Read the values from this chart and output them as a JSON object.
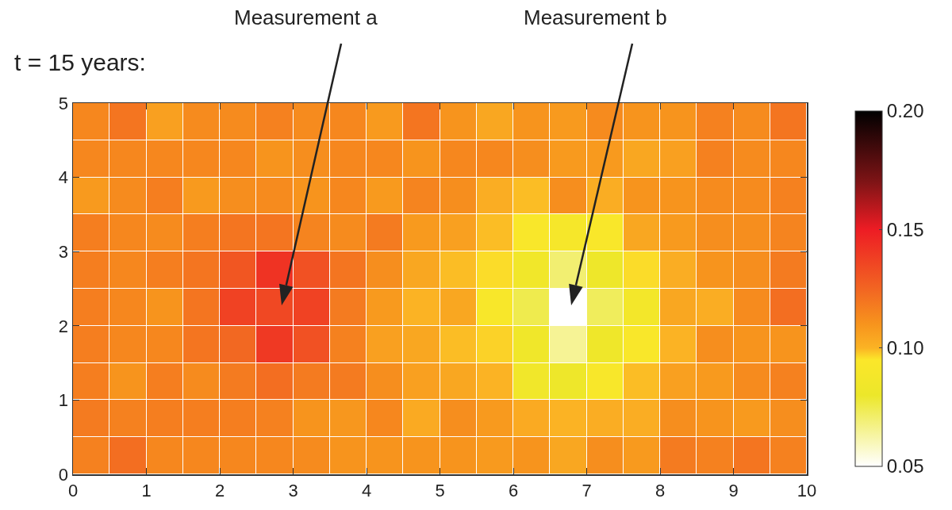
{
  "chart_data": {
    "type": "heatmap",
    "title": "t = 15 years:",
    "annotations": [
      "Measurement a",
      "Measurement b"
    ],
    "x": [
      0.25,
      0.75,
      1.25,
      1.75,
      2.25,
      2.75,
      3.25,
      3.75,
      4.25,
      4.75,
      5.25,
      5.75,
      6.25,
      6.75,
      7.25,
      7.75,
      8.25,
      8.75,
      9.25,
      9.75
    ],
    "y": [
      4.75,
      4.25,
      3.75,
      3.25,
      2.75,
      2.25,
      1.75,
      1.25,
      0.75,
      0.25
    ],
    "cells": [
      [
        0.114,
        0.12,
        0.106,
        0.113,
        0.113,
        0.116,
        0.113,
        0.114,
        0.108,
        0.12,
        0.11,
        0.104,
        0.11,
        0.108,
        0.113,
        0.11,
        0.11,
        0.116,
        0.113,
        0.12
      ],
      [
        0.114,
        0.114,
        0.114,
        0.114,
        0.114,
        0.11,
        0.112,
        0.114,
        0.114,
        0.11,
        0.114,
        0.114,
        0.112,
        0.108,
        0.108,
        0.104,
        0.106,
        0.116,
        0.113,
        0.114
      ],
      [
        0.108,
        0.113,
        0.117,
        0.108,
        0.112,
        0.113,
        0.11,
        0.114,
        0.108,
        0.115,
        0.112,
        0.102,
        0.099,
        0.112,
        0.102,
        0.11,
        0.11,
        0.113,
        0.113,
        0.116
      ],
      [
        0.117,
        0.114,
        0.113,
        0.117,
        0.12,
        0.12,
        0.115,
        0.113,
        0.118,
        0.108,
        0.106,
        0.099,
        0.093,
        0.09,
        0.093,
        0.104,
        0.108,
        0.112,
        0.112,
        0.115
      ],
      [
        0.117,
        0.114,
        0.117,
        0.12,
        0.13,
        0.142,
        0.132,
        0.12,
        0.112,
        0.104,
        0.099,
        0.096,
        0.085,
        0.07,
        0.082,
        0.096,
        0.102,
        0.11,
        0.112,
        0.118
      ],
      [
        0.117,
        0.114,
        0.11,
        0.12,
        0.137,
        0.135,
        0.137,
        0.118,
        0.108,
        0.1,
        0.104,
        0.092,
        0.075,
        0.05,
        0.073,
        0.087,
        0.104,
        0.102,
        0.113,
        0.122
      ],
      [
        0.117,
        0.114,
        0.114,
        0.12,
        0.124,
        0.14,
        0.132,
        0.116,
        0.106,
        0.104,
        0.099,
        0.097,
        0.084,
        0.065,
        0.083,
        0.093,
        0.1,
        0.112,
        0.11,
        0.11
      ],
      [
        0.117,
        0.11,
        0.117,
        0.113,
        0.118,
        0.122,
        0.118,
        0.118,
        0.112,
        0.106,
        0.104,
        0.1,
        0.085,
        0.082,
        0.092,
        0.099,
        0.106,
        0.108,
        0.113,
        0.116
      ],
      [
        0.118,
        0.116,
        0.117,
        0.117,
        0.117,
        0.116,
        0.11,
        0.109,
        0.114,
        0.103,
        0.112,
        0.108,
        0.103,
        0.1,
        0.102,
        0.102,
        0.112,
        0.11,
        0.108,
        0.112
      ],
      [
        0.116,
        0.122,
        0.114,
        0.114,
        0.114,
        0.114,
        0.113,
        0.11,
        0.11,
        0.11,
        0.11,
        0.108,
        0.11,
        0.104,
        0.112,
        0.108,
        0.118,
        0.116,
        0.12,
        0.116
      ]
    ],
    "xlim": [
      0,
      10
    ],
    "ylim": [
      0,
      5
    ],
    "xticks": [
      0,
      1,
      2,
      3,
      4,
      5,
      6,
      7,
      8,
      9,
      10
    ],
    "yticks": [
      0,
      1,
      2,
      3,
      4,
      5
    ],
    "clim": [
      0.05,
      0.2
    ],
    "cticks": [
      {
        "value": 0.05,
        "label": "0.05"
      },
      {
        "value": 0.1,
        "label": "0.10"
      },
      {
        "value": 0.15,
        "label": "0.15"
      },
      {
        "value": 0.2,
        "label": "0.20"
      }
    ],
    "grid": false
  }
}
